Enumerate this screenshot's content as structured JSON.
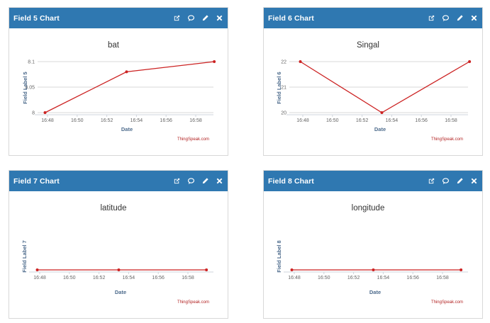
{
  "colors": {
    "header_bg": "#2f78b1",
    "line": "#cc2222",
    "grid": "#d9d9d9",
    "axis_title": "#4d6b8c",
    "credit": "#b22222"
  },
  "icons": [
    "external-link-icon",
    "comment-icon",
    "pencil-icon",
    "close-icon"
  ],
  "x_ticks": [
    "16:48",
    "16:50",
    "16:52",
    "16:54",
    "16:56",
    "16:58"
  ],
  "panels": [
    {
      "header": "Field 5 Chart",
      "credit": "ThingSpeak.com",
      "chart_data": {
        "type": "line",
        "title": "bat",
        "xlabel": "Date",
        "ylabel": "Field Label 5",
        "ylim": [
          8,
          8.1
        ],
        "y_ticks": [
          "8",
          "8.05",
          "8.1"
        ],
        "y_tick_values": [
          8,
          8.05,
          8.1
        ],
        "x": [
          "16:47:50",
          "16:53:20",
          "16:59:15"
        ],
        "values": [
          8.0,
          8.08,
          8.1
        ]
      }
    },
    {
      "header": "Field 6 Chart",
      "credit": "ThingSpeak.com",
      "chart_data": {
        "type": "line",
        "title": "Singal",
        "xlabel": "Date",
        "ylabel": "Field Label 6",
        "ylim": [
          20,
          22
        ],
        "y_ticks": [
          "20",
          "21",
          "22"
        ],
        "y_tick_values": [
          20,
          21,
          22
        ],
        "x": [
          "16:47:50",
          "16:53:20",
          "16:59:15"
        ],
        "values": [
          22,
          20,
          22
        ]
      }
    },
    {
      "header": "Field 7 Chart",
      "credit": "ThingSpeak.com",
      "chart_data": {
        "type": "line",
        "title": "latitude",
        "xlabel": "Date",
        "ylabel": "Field Label 7",
        "ylim": [
          0,
          1
        ],
        "y_ticks": [],
        "y_tick_values": [],
        "x": [
          "16:47:50",
          "16:53:20",
          "16:59:15"
        ],
        "values": [
          0,
          0,
          0
        ]
      }
    },
    {
      "header": "Field 8 Chart",
      "credit": "ThingSpeak.com",
      "chart_data": {
        "type": "line",
        "title": "longitude",
        "xlabel": "Date",
        "ylabel": "Field Label 8",
        "ylim": [
          0,
          1
        ],
        "y_ticks": [],
        "y_tick_values": [],
        "x": [
          "16:47:50",
          "16:53:20",
          "16:59:15"
        ],
        "values": [
          0,
          0,
          0
        ]
      }
    }
  ]
}
